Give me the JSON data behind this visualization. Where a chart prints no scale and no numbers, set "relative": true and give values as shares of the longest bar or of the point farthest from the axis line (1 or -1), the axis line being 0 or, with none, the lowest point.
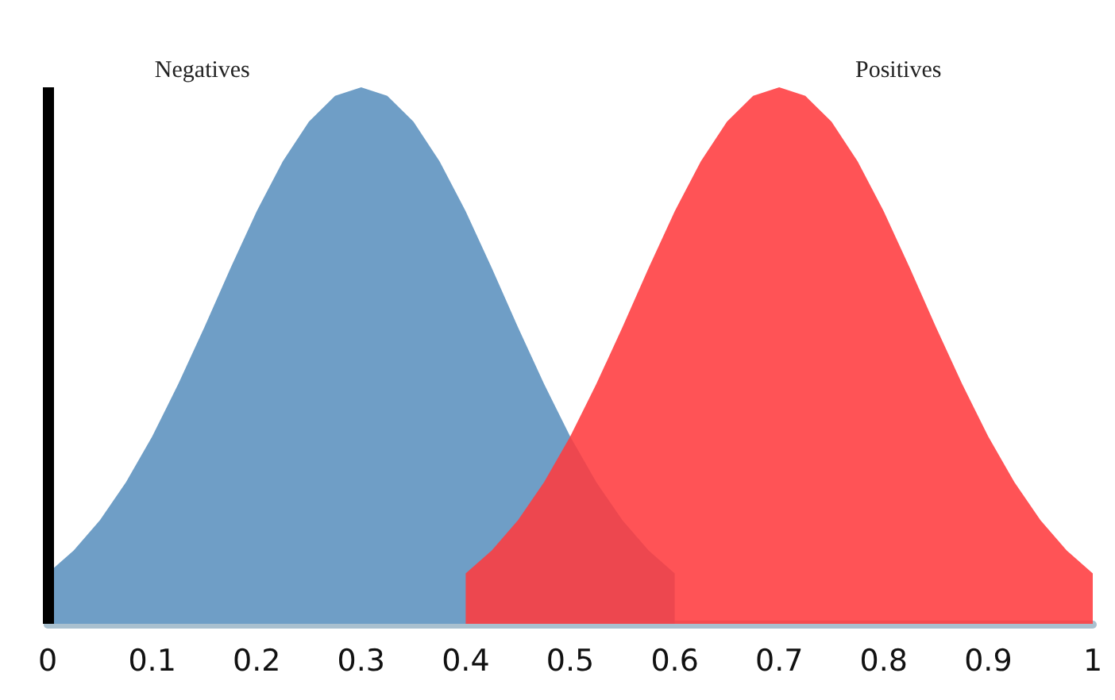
{
  "chart_data": {
    "type": "area",
    "relative": true,
    "xlim": [
      0,
      1
    ],
    "xticks": [
      0,
      0.1,
      0.2,
      0.3,
      0.4,
      0.5,
      0.6,
      0.7,
      0.8,
      0.9,
      1
    ],
    "grid": false,
    "legend": false,
    "marker": "none",
    "series": [
      {
        "name": "Negatives",
        "color": "#6f9ec6",
        "x": [
          0,
          0.025,
          0.05,
          0.075,
          0.1,
          0.125,
          0.15,
          0.175,
          0.2,
          0.225,
          0.25,
          0.275,
          0.3,
          0.325,
          0.35,
          0.375,
          0.4,
          0.425,
          0.45,
          0.475,
          0.5,
          0.525,
          0.55,
          0.575,
          0.6
        ],
        "values": [
          0.094,
          0.137,
          0.193,
          0.264,
          0.349,
          0.447,
          0.553,
          0.663,
          0.769,
          0.862,
          0.936,
          0.984,
          1,
          0.984,
          0.936,
          0.862,
          0.769,
          0.663,
          0.553,
          0.447,
          0.349,
          0.264,
          0.193,
          0.137,
          0.094
        ]
      },
      {
        "name": "Positives",
        "color": "#ff3b3f",
        "x": [
          0.4,
          0.425,
          0.45,
          0.475,
          0.5,
          0.525,
          0.55,
          0.575,
          0.6,
          0.625,
          0.65,
          0.675,
          0.7,
          0.725,
          0.75,
          0.775,
          0.8,
          0.825,
          0.85,
          0.875,
          0.9,
          0.925,
          0.95,
          0.975,
          1
        ],
        "values": [
          0.094,
          0.137,
          0.193,
          0.264,
          0.349,
          0.447,
          0.553,
          0.663,
          0.769,
          0.862,
          0.936,
          0.984,
          1,
          0.984,
          0.936,
          0.862,
          0.769,
          0.663,
          0.553,
          0.447,
          0.349,
          0.264,
          0.193,
          0.137,
          0.094
        ]
      }
    ],
    "ref_lines": [
      {
        "axis": "x",
        "value": 0,
        "color": "#000000"
      }
    ]
  }
}
